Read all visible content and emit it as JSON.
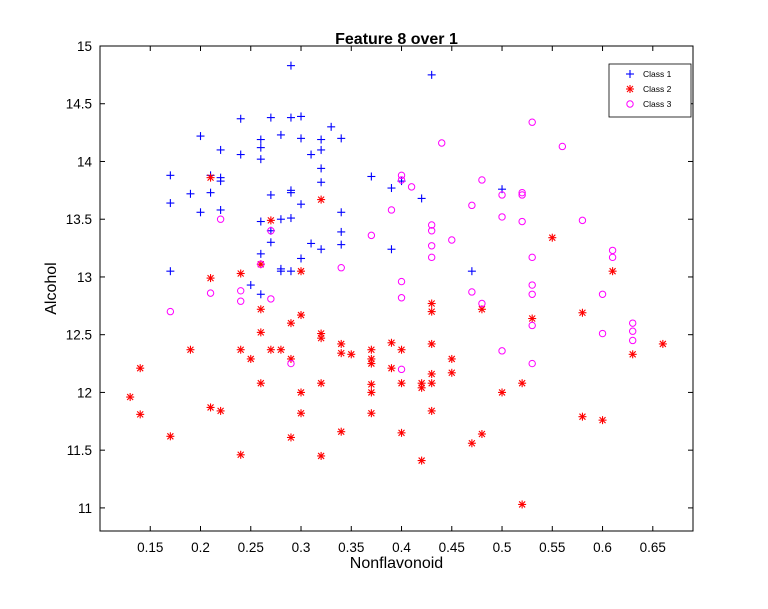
{
  "chart_data": {
    "type": "scatter",
    "title": "Feature 8 over 1",
    "xlabel": "Nonflavonoid",
    "ylabel": "Alcohol",
    "xlim": [
      0.1,
      0.69
    ],
    "ylim": [
      10.8,
      15.0
    ],
    "xticks": [
      0.15,
      0.2,
      0.25,
      0.3,
      0.35,
      0.4,
      0.45,
      0.5,
      0.55,
      0.6,
      0.65
    ],
    "xtick_labels": [
      "0.15",
      "0.2",
      "0.25",
      "0.3",
      "0.35",
      "0.4",
      "0.45",
      "0.5",
      "0.55",
      "0.6",
      "0.65"
    ],
    "yticks": [
      11,
      11.5,
      12,
      12.5,
      13,
      13.5,
      14,
      14.5,
      15
    ],
    "ytick_labels": [
      "11",
      "11.5",
      "12",
      "12.5",
      "13",
      "13.5",
      "14",
      "14.5",
      "15"
    ],
    "grid": false,
    "legend_position": "top-right",
    "series": [
      {
        "name": "Class 1",
        "marker": "plus",
        "color": "#0000ff",
        "points": [
          [
            0.17,
            13.88
          ],
          [
            0.17,
            13.64
          ],
          [
            0.17,
            13.05
          ],
          [
            0.19,
            13.72
          ],
          [
            0.2,
            14.22
          ],
          [
            0.2,
            13.56
          ],
          [
            0.21,
            13.88
          ],
          [
            0.21,
            13.73
          ],
          [
            0.22,
            14.1
          ],
          [
            0.22,
            13.86
          ],
          [
            0.22,
            13.83
          ],
          [
            0.22,
            13.58
          ],
          [
            0.24,
            14.37
          ],
          [
            0.24,
            14.06
          ],
          [
            0.25,
            12.93
          ],
          [
            0.26,
            14.19
          ],
          [
            0.26,
            14.12
          ],
          [
            0.26,
            14.02
          ],
          [
            0.26,
            13.48
          ],
          [
            0.26,
            13.2
          ],
          [
            0.26,
            12.85
          ],
          [
            0.27,
            14.38
          ],
          [
            0.27,
            13.71
          ],
          [
            0.27,
            13.4
          ],
          [
            0.27,
            13.3
          ],
          [
            0.28,
            14.23
          ],
          [
            0.28,
            13.5
          ],
          [
            0.28,
            13.07
          ],
          [
            0.28,
            13.05
          ],
          [
            0.29,
            14.83
          ],
          [
            0.29,
            14.38
          ],
          [
            0.29,
            13.75
          ],
          [
            0.29,
            13.73
          ],
          [
            0.29,
            13.51
          ],
          [
            0.29,
            13.05
          ],
          [
            0.3,
            14.39
          ],
          [
            0.3,
            14.2
          ],
          [
            0.3,
            13.63
          ],
          [
            0.3,
            13.16
          ],
          [
            0.31,
            14.06
          ],
          [
            0.31,
            13.29
          ],
          [
            0.32,
            14.19
          ],
          [
            0.32,
            14.1
          ],
          [
            0.32,
            13.94
          ],
          [
            0.32,
            13.82
          ],
          [
            0.32,
            13.24
          ],
          [
            0.33,
            14.3
          ],
          [
            0.34,
            14.2
          ],
          [
            0.34,
            13.56
          ],
          [
            0.34,
            13.39
          ],
          [
            0.34,
            13.28
          ],
          [
            0.37,
            13.87
          ],
          [
            0.39,
            13.77
          ],
          [
            0.39,
            13.24
          ],
          [
            0.4,
            13.83
          ],
          [
            0.42,
            13.68
          ],
          [
            0.43,
            14.75
          ],
          [
            0.47,
            13.05
          ],
          [
            0.5,
            13.76
          ]
        ]
      },
      {
        "name": "Class 2",
        "marker": "star",
        "color": "#ff0000",
        "points": [
          [
            0.13,
            11.96
          ],
          [
            0.14,
            12.21
          ],
          [
            0.14,
            11.81
          ],
          [
            0.17,
            11.62
          ],
          [
            0.19,
            12.37
          ],
          [
            0.21,
            13.86
          ],
          [
            0.21,
            12.99
          ],
          [
            0.21,
            11.87
          ],
          [
            0.22,
            11.84
          ],
          [
            0.24,
            13.03
          ],
          [
            0.24,
            12.37
          ],
          [
            0.24,
            11.46
          ],
          [
            0.25,
            12.29
          ],
          [
            0.26,
            13.11
          ],
          [
            0.26,
            12.72
          ],
          [
            0.26,
            12.52
          ],
          [
            0.26,
            12.08
          ],
          [
            0.27,
            13.49
          ],
          [
            0.27,
            12.37
          ],
          [
            0.28,
            12.37
          ],
          [
            0.29,
            12.6
          ],
          [
            0.29,
            12.29
          ],
          [
            0.29,
            11.61
          ],
          [
            0.3,
            13.05
          ],
          [
            0.3,
            12.67
          ],
          [
            0.3,
            12.0
          ],
          [
            0.3,
            11.82
          ],
          [
            0.32,
            13.67
          ],
          [
            0.32,
            12.51
          ],
          [
            0.32,
            12.47
          ],
          [
            0.32,
            12.08
          ],
          [
            0.32,
            11.45
          ],
          [
            0.34,
            12.42
          ],
          [
            0.34,
            12.34
          ],
          [
            0.34,
            11.66
          ],
          [
            0.35,
            12.33
          ],
          [
            0.37,
            12.37
          ],
          [
            0.37,
            12.29
          ],
          [
            0.37,
            12.25
          ],
          [
            0.37,
            12.07
          ],
          [
            0.37,
            12.0
          ],
          [
            0.37,
            11.82
          ],
          [
            0.39,
            12.43
          ],
          [
            0.39,
            12.21
          ],
          [
            0.4,
            12.37
          ],
          [
            0.4,
            12.08
          ],
          [
            0.4,
            11.65
          ],
          [
            0.42,
            12.08
          ],
          [
            0.42,
            12.04
          ],
          [
            0.42,
            11.41
          ],
          [
            0.43,
            12.77
          ],
          [
            0.43,
            12.7
          ],
          [
            0.43,
            12.42
          ],
          [
            0.43,
            12.16
          ],
          [
            0.43,
            12.08
          ],
          [
            0.43,
            11.84
          ],
          [
            0.45,
            12.29
          ],
          [
            0.45,
            12.17
          ],
          [
            0.47,
            11.56
          ],
          [
            0.48,
            12.72
          ],
          [
            0.48,
            11.64
          ],
          [
            0.5,
            12.0
          ],
          [
            0.52,
            12.08
          ],
          [
            0.52,
            11.03
          ],
          [
            0.53,
            12.64
          ],
          [
            0.55,
            13.34
          ],
          [
            0.58,
            12.69
          ],
          [
            0.58,
            11.79
          ],
          [
            0.6,
            11.76
          ],
          [
            0.61,
            13.05
          ],
          [
            0.63,
            12.33
          ],
          [
            0.66,
            12.42
          ]
        ]
      },
      {
        "name": "Class 3",
        "marker": "circle",
        "color": "#ff00ff",
        "points": [
          [
            0.17,
            12.7
          ],
          [
            0.21,
            12.86
          ],
          [
            0.22,
            13.5
          ],
          [
            0.24,
            12.88
          ],
          [
            0.24,
            12.79
          ],
          [
            0.26,
            13.11
          ],
          [
            0.27,
            13.4
          ],
          [
            0.27,
            12.81
          ],
          [
            0.29,
            12.25
          ],
          [
            0.34,
            13.08
          ],
          [
            0.37,
            13.36
          ],
          [
            0.39,
            13.58
          ],
          [
            0.4,
            13.88
          ],
          [
            0.4,
            13.84
          ],
          [
            0.4,
            12.96
          ],
          [
            0.4,
            12.82
          ],
          [
            0.4,
            12.2
          ],
          [
            0.41,
            13.78
          ],
          [
            0.43,
            13.45
          ],
          [
            0.43,
            13.4
          ],
          [
            0.43,
            13.27
          ],
          [
            0.43,
            13.17
          ],
          [
            0.44,
            14.16
          ],
          [
            0.45,
            13.32
          ],
          [
            0.47,
            13.62
          ],
          [
            0.47,
            12.87
          ],
          [
            0.48,
            13.84
          ],
          [
            0.48,
            12.77
          ],
          [
            0.5,
            13.71
          ],
          [
            0.5,
            13.52
          ],
          [
            0.5,
            12.36
          ],
          [
            0.52,
            13.73
          ],
          [
            0.52,
            13.71
          ],
          [
            0.52,
            13.48
          ],
          [
            0.53,
            14.34
          ],
          [
            0.53,
            13.17
          ],
          [
            0.53,
            12.93
          ],
          [
            0.53,
            12.85
          ],
          [
            0.53,
            12.58
          ],
          [
            0.53,
            12.25
          ],
          [
            0.56,
            14.13
          ],
          [
            0.58,
            13.49
          ],
          [
            0.6,
            12.85
          ],
          [
            0.6,
            12.51
          ],
          [
            0.61,
            13.23
          ],
          [
            0.61,
            13.17
          ],
          [
            0.63,
            12.6
          ],
          [
            0.63,
            12.53
          ],
          [
            0.63,
            12.45
          ]
        ]
      }
    ]
  }
}
